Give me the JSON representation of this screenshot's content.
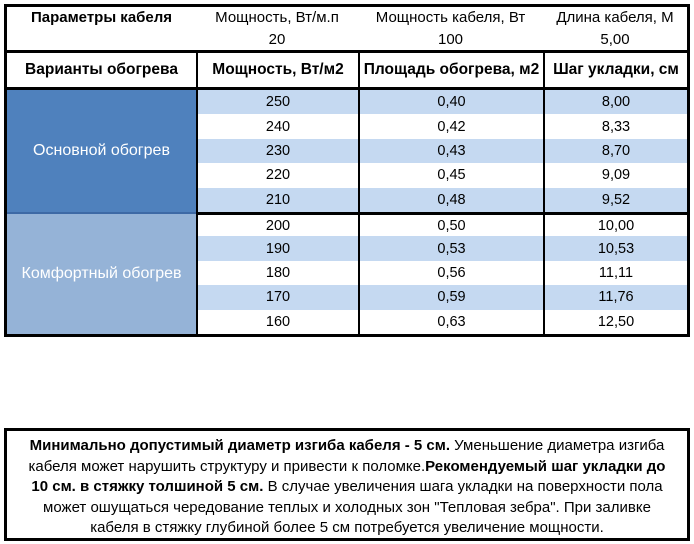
{
  "colors": {
    "group_primary_bg": "#4F81BD",
    "group_comfort_bg": "#95B3D7",
    "row_stripe_bg": "#C5D9F1",
    "row_plain_bg": "#FFFFFF",
    "group_divider": "#3D69A5",
    "border": "#000000",
    "group_text": "#FFFFFF"
  },
  "cable_params": {
    "title": "Параметры кабеля",
    "columns": [
      {
        "label": "Мощность, Вт/м.п",
        "value": "20"
      },
      {
        "label": "Мощность кабеля, Вт",
        "value": "100"
      },
      {
        "label": "Длина кабеля, М",
        "value": "5,00"
      }
    ]
  },
  "heating_table": {
    "headers": [
      "Варианты обогрева",
      "Мощность, Вт/м2",
      "Площадь обогрева, м2",
      "Шаг укладки, см"
    ],
    "groups": [
      {
        "label": "Основной обогрев",
        "rows": [
          [
            "250",
            "0,40",
            "8,00"
          ],
          [
            "240",
            "0,42",
            "8,33"
          ],
          [
            "230",
            "0,43",
            "8,70"
          ],
          [
            "220",
            "0,45",
            "9,09"
          ],
          [
            "210",
            "0,48",
            "9,52"
          ]
        ]
      },
      {
        "label": "Комфортный обогрев",
        "rows": [
          [
            "200",
            "0,50",
            "10,00"
          ],
          [
            "190",
            "0,53",
            "10,53"
          ],
          [
            "180",
            "0,56",
            "11,11"
          ],
          [
            "170",
            "0,59",
            "11,76"
          ],
          [
            "160",
            "0,63",
            "12,50"
          ]
        ]
      }
    ]
  },
  "note": {
    "segments": [
      {
        "style": "bold",
        "text": "Минимально допустимый диаметр изгиба кабеля - 5 см."
      },
      {
        "style": "regular",
        "text": "  Уменьшение диаметра изгиба кабеля может нарушить структуру и привести к поломке."
      },
      {
        "style": "bold",
        "text": "Рекомендуемый шаг укладки до 10 см. в стяжку толшиной 5 см."
      },
      {
        "style": "regular",
        "text": " В  случае увеличения шага укладки на поверхности пола может ошущаться чередование теплых и холодных зон \"Тепловая зебра\". При заливке кабеля в стяжку глубиной более 5 см потребуется увеличение мощности."
      }
    ]
  }
}
